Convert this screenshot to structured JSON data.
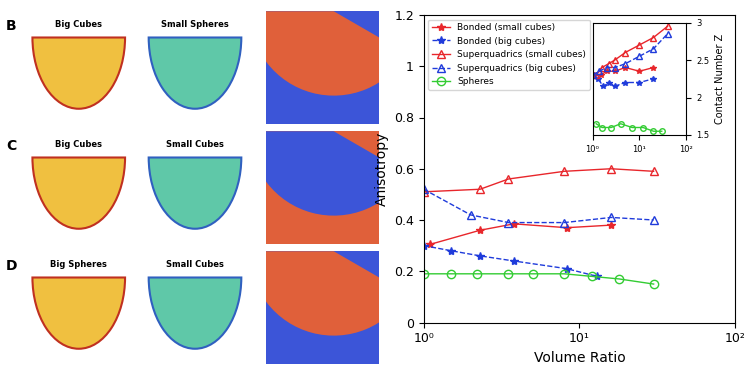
{
  "chart_data": [
    {
      "type": "line",
      "x_label": "Volume Ratio",
      "y_label": "Anisotropy",
      "log": "x",
      "xlim": [
        1,
        100
      ],
      "xticks": [
        {
          "value": 1,
          "label": "10⁰"
        },
        {
          "value": 10,
          "label": "10¹"
        },
        {
          "value": 100,
          "label": "10²"
        }
      ],
      "ylim": [
        0,
        1.2
      ],
      "yticks": [
        0,
        0.2,
        0.4,
        0.6,
        0.8,
        1,
        1.2
      ],
      "legend": "upper left",
      "series": [
        {
          "name": "Bonded (small cubes)",
          "color": "#e8262b",
          "marker": "star",
          "line_style": "solid",
          "x": [
            1.1,
            2.3,
            3.8,
            8.3,
            16
          ],
          "values": [
            0.305,
            0.36,
            0.385,
            0.37,
            0.38
          ]
        },
        {
          "name": "Bonded (big cubes)",
          "color": "#1f3bdb",
          "marker": "star",
          "line_style": "dashed",
          "x": [
            1,
            1.5,
            2.3,
            3.8,
            8.3,
            13
          ],
          "values": [
            0.3,
            0.28,
            0.26,
            0.24,
            0.21,
            0.18
          ]
        },
        {
          "name": "Superquadrics (small cubes)",
          "color": "#e8262b",
          "marker": "triangle",
          "line_style": "solid",
          "x": [
            1,
            2.3,
            3.5,
            8,
            16,
            30
          ],
          "values": [
            0.51,
            0.52,
            0.56,
            0.59,
            0.6,
            0.59
          ]
        },
        {
          "name": "Superquadrics (big cubes)",
          "color": "#1f3bdb",
          "marker": "triangle",
          "line_style": "dashed",
          "x": [
            1,
            2,
            3.5,
            8,
            16,
            30
          ],
          "values": [
            0.52,
            0.42,
            0.39,
            0.39,
            0.41,
            0.4
          ]
        },
        {
          "name": "Spheres",
          "color": "#33cc33",
          "marker": "circle",
          "line_style": "solid",
          "x": [
            1,
            1.5,
            2.2,
            3.5,
            5,
            8,
            12,
            18,
            30
          ],
          "values": [
            0.19,
            0.19,
            0.19,
            0.19,
            0.19,
            0.19,
            0.18,
            0.17,
            0.15
          ]
        }
      ]
    },
    {
      "type": "line",
      "y_label": "Contact Number Z",
      "log": "x",
      "xlim": [
        1,
        100
      ],
      "xticks": [
        {
          "value": 1,
          "label": "10⁰"
        },
        {
          "value": 10,
          "label": "10¹"
        },
        {
          "value": 100,
          "label": "10²"
        }
      ],
      "ylim": [
        1.5,
        3
      ],
      "yticks": [
        1.5,
        2,
        2.5,
        3
      ],
      "series": [
        {
          "name": "Bonded (small cubes)",
          "color": "#e8262b",
          "marker": "star",
          "line_style": "solid",
          "x": [
            1.1,
            1.5,
            2,
            3,
            5,
            10,
            20
          ],
          "values": [
            2.3,
            2.3,
            2.35,
            2.35,
            2.4,
            2.35,
            2.4
          ]
        },
        {
          "name": "Bonded (big cubes)",
          "color": "#1f3bdb",
          "marker": "star",
          "line_style": "dashed",
          "x": [
            1,
            1.3,
            1.7,
            2.3,
            3,
            5,
            10,
            20
          ],
          "values": [
            2.3,
            2.25,
            2.15,
            2.2,
            2.15,
            2.2,
            2.2,
            2.25
          ]
        },
        {
          "name": "Superquadrics (small cubes)",
          "color": "#e8262b",
          "marker": "triangle",
          "line_style": "solid",
          "x": [
            1.2,
            1.6,
            2.2,
            3,
            5,
            10,
            20,
            40
          ],
          "values": [
            2.3,
            2.4,
            2.45,
            2.5,
            2.6,
            2.7,
            2.8,
            2.95
          ]
        },
        {
          "name": "Superquadrics (big cubes)",
          "color": "#1f3bdb",
          "marker": "triangle",
          "line_style": "dashed",
          "x": [
            1,
            1.4,
            2,
            3,
            5,
            10,
            20,
            40
          ],
          "values": [
            2.3,
            2.35,
            2.4,
            2.4,
            2.45,
            2.55,
            2.65,
            2.85
          ]
        },
        {
          "name": "Spheres",
          "color": "#33cc33",
          "marker": "circle",
          "line_style": "solid",
          "x": [
            1.2,
            1.6,
            2.5,
            4,
            7,
            12,
            20,
            30
          ],
          "values": [
            1.65,
            1.6,
            1.6,
            1.65,
            1.6,
            1.6,
            1.55,
            1.55
          ]
        }
      ]
    }
  ],
  "panels": [
    {
      "letter": "B",
      "left_title": "Big Cubes",
      "right_title": "Small Spheres"
    },
    {
      "letter": "C",
      "left_title": "Big Cubes",
      "right_title": "Small Cubes"
    },
    {
      "letter": "D",
      "left_title": "Big Spheres",
      "right_title": "Small Cubes"
    }
  ]
}
